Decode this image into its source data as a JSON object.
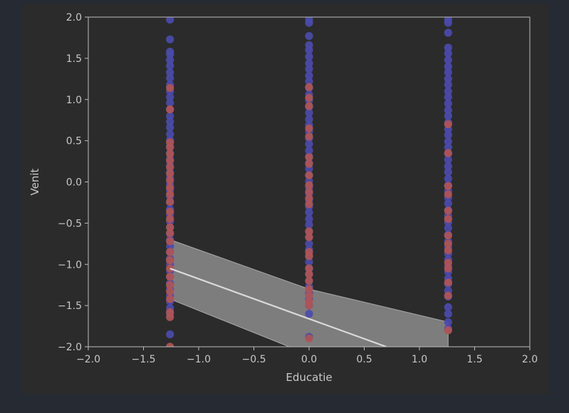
{
  "chart_data": {
    "type": "scatter",
    "title": "",
    "xlabel": "Educatie",
    "ylabel": "Venit",
    "xlim": [
      -2.0,
      2.0
    ],
    "ylim": [
      -2.0,
      2.0
    ],
    "xticks": [
      "−2.0",
      "−1.5",
      "−1.0",
      "−0.5",
      "0.0",
      "0.5",
      "1.0",
      "1.5",
      "2.0"
    ],
    "yticks": [
      "2.0",
      "1.5",
      "1.0",
      "0.5",
      "0.0",
      "−0.5",
      "−1.0",
      "−1.5",
      "−2.0"
    ],
    "xtick_values": [
      -2.0,
      -1.5,
      -1.0,
      -0.5,
      0.0,
      0.5,
      1.0,
      1.5,
      2.0
    ],
    "ytick_values": [
      2.0,
      1.5,
      1.0,
      0.5,
      0.0,
      -0.5,
      -1.0,
      -1.5,
      -2.0
    ],
    "grid": false,
    "legend": "none",
    "colors": {
      "figure_bg": "#2b2b2b",
      "page_bg": "#262a33",
      "axes_spine": "#bdbdbd",
      "series_blue": "#4b4bab",
      "series_red": "#b05555",
      "regression_line": "#d9d9d9",
      "confidence_band": "#8c8c8c"
    },
    "series": [
      {
        "color": "#4b4bab",
        "points": [
          [
            -1.26,
            1.97
          ],
          [
            -1.26,
            1.73
          ],
          [
            -1.26,
            1.58
          ],
          [
            -1.26,
            1.55
          ],
          [
            -1.26,
            1.48
          ],
          [
            -1.26,
            1.41
          ],
          [
            -1.26,
            1.33
          ],
          [
            -1.26,
            1.26
          ],
          [
            -1.26,
            1.18
          ],
          [
            -1.26,
            1.1
          ],
          [
            -1.26,
            1.03
          ],
          [
            -1.26,
            0.96
          ],
          [
            -1.26,
            0.88
          ],
          [
            -1.26,
            0.8
          ],
          [
            -1.26,
            0.73
          ],
          [
            -1.26,
            0.66
          ],
          [
            -1.26,
            0.58
          ],
          [
            -1.26,
            0.51
          ],
          [
            -1.26,
            0.43
          ],
          [
            -1.26,
            0.35
          ],
          [
            -1.26,
            0.28
          ],
          [
            -1.26,
            0.2
          ],
          [
            -1.26,
            0.12
          ],
          [
            -1.26,
            0.05
          ],
          [
            -1.26,
            -0.03
          ],
          [
            -1.26,
            -0.1
          ],
          [
            -1.26,
            -0.18
          ],
          [
            -1.26,
            -0.25
          ],
          [
            -1.26,
            -0.33
          ],
          [
            -1.26,
            -0.4
          ],
          [
            -1.26,
            -0.48
          ],
          [
            -1.26,
            -0.55
          ],
          [
            -1.26,
            -0.63
          ],
          [
            -1.26,
            -0.7
          ],
          [
            -1.26,
            -0.78
          ],
          [
            -1.26,
            -0.85
          ],
          [
            -1.26,
            -0.93
          ],
          [
            -1.26,
            -1.0
          ],
          [
            -1.26,
            -1.08
          ],
          [
            -1.26,
            -1.15
          ],
          [
            -1.26,
            -1.23
          ],
          [
            -1.26,
            -1.3
          ],
          [
            -1.26,
            -1.38
          ],
          [
            -1.26,
            -1.45
          ],
          [
            -1.26,
            -1.53
          ],
          [
            -1.26,
            -1.6
          ],
          [
            -1.26,
            -1.85
          ],
          [
            0.0,
            1.97
          ],
          [
            0.0,
            1.93
          ],
          [
            0.0,
            1.77
          ],
          [
            0.0,
            1.66
          ],
          [
            0.0,
            1.6
          ],
          [
            0.0,
            1.52
          ],
          [
            0.0,
            1.44
          ],
          [
            0.0,
            1.37
          ],
          [
            0.0,
            1.29
          ],
          [
            0.0,
            1.22
          ],
          [
            0.0,
            1.14
          ],
          [
            0.0,
            1.06
          ],
          [
            0.0,
            0.99
          ],
          [
            0.0,
            0.91
          ],
          [
            0.0,
            0.84
          ],
          [
            0.0,
            0.76
          ],
          [
            0.0,
            0.69
          ],
          [
            0.0,
            0.61
          ],
          [
            0.0,
            0.53
          ],
          [
            0.0,
            0.46
          ],
          [
            0.0,
            0.38
          ],
          [
            0.0,
            0.31
          ],
          [
            0.0,
            0.23
          ],
          [
            0.0,
            0.16
          ],
          [
            0.0,
            0.08
          ],
          [
            0.0,
            0.01
          ],
          [
            0.0,
            -0.07
          ],
          [
            0.0,
            -0.14
          ],
          [
            0.0,
            -0.22
          ],
          [
            0.0,
            -0.3
          ],
          [
            0.0,
            -0.37
          ],
          [
            0.0,
            -0.45
          ],
          [
            0.0,
            -0.52
          ],
          [
            0.0,
            -0.6
          ],
          [
            0.0,
            -0.67
          ],
          [
            0.0,
            -0.75
          ],
          [
            0.0,
            -0.82
          ],
          [
            0.0,
            -0.9
          ],
          [
            0.0,
            -0.97
          ],
          [
            0.0,
            -1.05
          ],
          [
            0.0,
            -1.12
          ],
          [
            0.0,
            -1.2
          ],
          [
            0.0,
            -1.27
          ],
          [
            0.0,
            -1.35
          ],
          [
            0.0,
            -1.42
          ],
          [
            0.0,
            -1.5
          ],
          [
            0.0,
            -1.6
          ],
          [
            0.0,
            -1.88
          ],
          [
            1.26,
            1.97
          ],
          [
            1.26,
            1.93
          ],
          [
            1.26,
            1.81
          ],
          [
            1.26,
            1.63
          ],
          [
            1.26,
            1.56
          ],
          [
            1.26,
            1.48
          ],
          [
            1.26,
            1.4
          ],
          [
            1.26,
            1.33
          ],
          [
            1.26,
            1.25
          ],
          [
            1.26,
            1.18
          ],
          [
            1.26,
            1.1
          ],
          [
            1.26,
            1.03
          ],
          [
            1.26,
            0.95
          ],
          [
            1.26,
            0.87
          ],
          [
            1.26,
            0.8
          ],
          [
            1.26,
            0.72
          ],
          [
            1.26,
            0.64
          ],
          [
            1.26,
            0.57
          ],
          [
            1.26,
            0.49
          ],
          [
            1.26,
            0.42
          ],
          [
            1.26,
            0.34
          ],
          [
            1.26,
            0.27
          ],
          [
            1.26,
            0.19
          ],
          [
            1.26,
            0.12
          ],
          [
            1.26,
            0.04
          ],
          [
            1.26,
            -0.04
          ],
          [
            1.26,
            -0.11
          ],
          [
            1.26,
            -0.19
          ],
          [
            1.26,
            -0.26
          ],
          [
            1.26,
            -0.34
          ],
          [
            1.26,
            -0.41
          ],
          [
            1.26,
            -0.49
          ],
          [
            1.26,
            -0.56
          ],
          [
            1.26,
            -0.64
          ],
          [
            1.26,
            -0.72
          ],
          [
            1.26,
            -0.79
          ],
          [
            1.26,
            -0.87
          ],
          [
            1.26,
            -0.94
          ],
          [
            1.26,
            -1.02
          ],
          [
            1.26,
            -1.09
          ],
          [
            1.26,
            -1.17
          ],
          [
            1.26,
            -1.24
          ],
          [
            1.26,
            -1.32
          ],
          [
            1.26,
            -1.39
          ],
          [
            1.26,
            -1.52
          ],
          [
            1.26,
            -1.6
          ],
          [
            1.26,
            -1.7
          ],
          [
            1.26,
            -1.78
          ]
        ]
      },
      {
        "color": "#b05555",
        "points": [
          [
            -1.26,
            1.14
          ],
          [
            -1.26,
            0.88
          ],
          [
            -1.26,
            0.48
          ],
          [
            -1.26,
            0.42
          ],
          [
            -1.26,
            0.34
          ],
          [
            -1.26,
            0.26
          ],
          [
            -1.26,
            0.18
          ],
          [
            -1.26,
            0.1
          ],
          [
            -1.26,
            0.02
          ],
          [
            -1.26,
            -0.07
          ],
          [
            -1.26,
            -0.15
          ],
          [
            -1.26,
            -0.24
          ],
          [
            -1.26,
            -0.36
          ],
          [
            -1.26,
            -0.45
          ],
          [
            -1.26,
            -0.55
          ],
          [
            -1.26,
            -0.62
          ],
          [
            -1.26,
            -0.72
          ],
          [
            -1.26,
            -0.85
          ],
          [
            -1.26,
            -0.95
          ],
          [
            -1.26,
            -1.05
          ],
          [
            -1.26,
            -1.15
          ],
          [
            -1.26,
            -1.25
          ],
          [
            -1.26,
            -1.33
          ],
          [
            -1.26,
            -1.42
          ],
          [
            -1.26,
            -1.58
          ],
          [
            -1.26,
            -1.64
          ],
          [
            -1.26,
            -2.0
          ],
          [
            0.0,
            1.15
          ],
          [
            0.0,
            1.02
          ],
          [
            0.0,
            0.92
          ],
          [
            0.0,
            0.65
          ],
          [
            0.0,
            0.55
          ],
          [
            0.0,
            0.3
          ],
          [
            0.0,
            0.22
          ],
          [
            0.0,
            0.08
          ],
          [
            0.0,
            -0.04
          ],
          [
            0.0,
            -0.12
          ],
          [
            0.0,
            -0.2
          ],
          [
            0.0,
            -0.27
          ],
          [
            0.0,
            -0.6
          ],
          [
            0.0,
            -0.67
          ],
          [
            0.0,
            -0.85
          ],
          [
            0.0,
            -0.9
          ],
          [
            0.0,
            -1.05
          ],
          [
            0.0,
            -1.12
          ],
          [
            0.0,
            -1.2
          ],
          [
            0.0,
            -1.3
          ],
          [
            0.0,
            -1.38
          ],
          [
            0.0,
            -1.45
          ],
          [
            0.0,
            -1.5
          ],
          [
            0.0,
            -1.9
          ],
          [
            1.26,
            0.7
          ],
          [
            1.26,
            0.35
          ],
          [
            1.26,
            -0.05
          ],
          [
            1.26,
            -0.15
          ],
          [
            1.26,
            -0.35
          ],
          [
            1.26,
            -0.45
          ],
          [
            1.26,
            -0.65
          ],
          [
            1.26,
            -0.75
          ],
          [
            1.26,
            -0.83
          ],
          [
            1.26,
            -0.98
          ],
          [
            1.26,
            -1.05
          ],
          [
            1.26,
            -1.22
          ],
          [
            1.26,
            -1.38
          ],
          [
            1.26,
            -1.8
          ]
        ]
      }
    ],
    "regression": {
      "color": "#d9d9d9",
      "line": [
        [
          -1.26,
          -1.05
        ],
        [
          0.7,
          -2.0
        ]
      ],
      "band_upper": [
        [
          -1.26,
          -0.7
        ],
        [
          0.0,
          -1.3
        ],
        [
          1.26,
          -1.7
        ]
      ],
      "band_lower": [
        [
          -1.26,
          -1.42
        ],
        [
          -0.18,
          -2.0
        ],
        [
          1.26,
          -2.0
        ]
      ]
    }
  }
}
